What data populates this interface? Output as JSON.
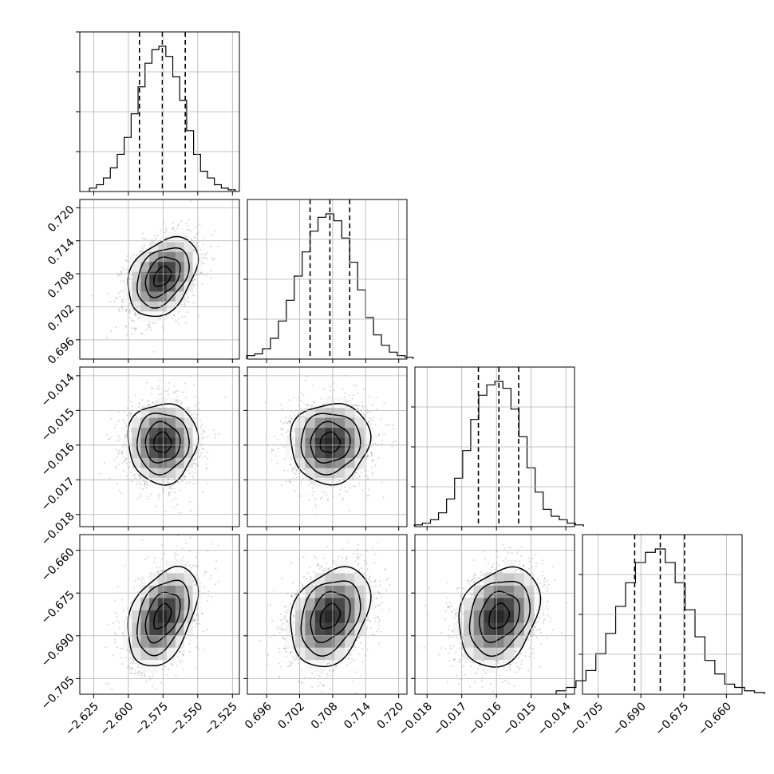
{
  "chart_data": {
    "type": "corner",
    "parameters": [
      {
        "range": [
          -2.635,
          -2.52
        ],
        "ticks": [
          -2.625,
          -2.6,
          -2.575,
          -2.55,
          -2.525
        ],
        "tick_labels": [
          "−2.625",
          "−2.600",
          "−2.575",
          "−2.550",
          "−2.525"
        ],
        "quantiles": [
          -2.592,
          -2.5755,
          -2.559
        ],
        "center": -2.5755,
        "sd": 0.0125
      },
      {
        "range": [
          0.6925,
          0.7215
        ],
        "ticks": [
          0.696,
          0.702,
          0.708,
          0.714,
          0.72
        ],
        "tick_labels": [
          "0.696",
          "0.702",
          "0.708",
          "0.714",
          "0.720"
        ],
        "quantiles": [
          0.7039,
          0.7075,
          0.7111
        ],
        "center": 0.7075,
        "sd": 0.0036
      },
      {
        "range": [
          -0.01835,
          -0.01375
        ],
        "ticks": [
          -0.018,
          -0.017,
          -0.016,
          -0.015,
          -0.014
        ],
        "tick_labels": [
          "−0.018",
          "−0.017",
          "−0.016",
          "−0.015",
          "−0.014"
        ],
        "quantiles": [
          -0.01652,
          -0.01593,
          -0.01536
        ],
        "center": -0.01593,
        "sd": 0.00058
      },
      {
        "range": [
          -0.7105,
          -0.6545
        ],
        "ticks": [
          -0.705,
          -0.69,
          -0.675,
          -0.66
        ],
        "tick_labels": [
          "−0.705",
          "−0.690",
          "−0.675",
          "−0.660"
        ],
        "quantiles": [
          -0.6922,
          -0.6832,
          -0.6747
        ],
        "center": -0.6832,
        "sd": 0.0087
      }
    ],
    "histograms": [
      [
        1,
        2,
        4,
        7,
        11,
        16,
        23,
        31,
        38,
        42,
        43,
        40,
        34,
        27,
        18,
        11,
        6,
        4,
        2,
        1,
        0.5
      ],
      [
        1,
        1.5,
        3,
        6,
        11,
        17,
        24,
        31,
        37,
        41,
        42,
        40,
        35,
        28,
        20,
        12,
        7,
        4,
        2,
        1,
        0.5
      ],
      [
        0.5,
        1,
        2,
        4,
        8,
        14,
        22,
        31,
        38,
        41,
        42,
        40,
        34,
        26,
        17,
        10,
        5,
        3,
        2,
        1,
        0.5
      ],
      [
        1,
        2,
        4,
        7,
        12,
        18,
        26,
        33,
        39,
        42,
        43,
        39,
        33,
        25,
        17,
        10,
        6,
        3,
        2,
        1,
        0.5
      ]
    ],
    "correlations": {
      "1-0": 0.35,
      "2-0": 0.02,
      "2-1": 0.05,
      "3-0": 0.4,
      "3-1": 0.3,
      "3-2": 0.25
    },
    "grid": true,
    "quantile_style": "dashed"
  }
}
